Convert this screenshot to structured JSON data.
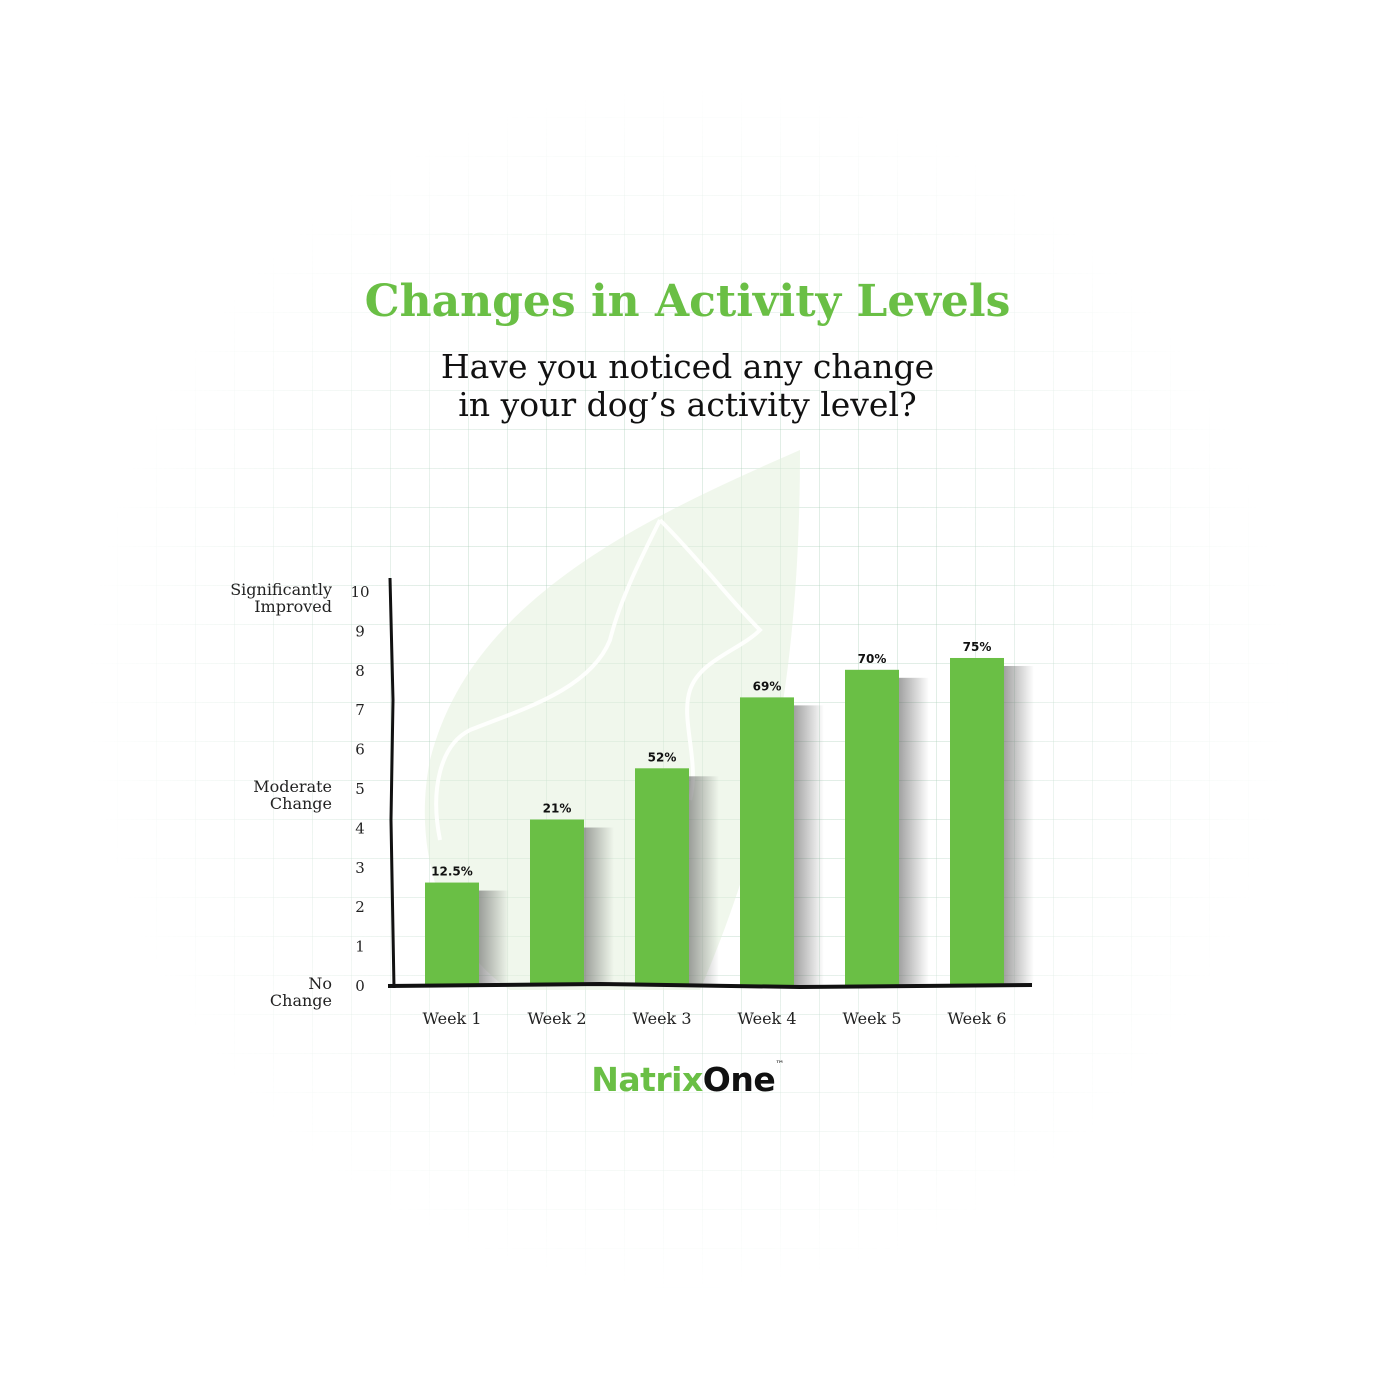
{
  "chart_data": {
    "type": "bar",
    "title": "Changes in Activity Levels",
    "subtitle_lines": [
      "Have you noticed any change",
      "in your dog’s activity level?"
    ],
    "categories": [
      "Week 1",
      "Week 2",
      "Week 3",
      "Week 4",
      "Week 5",
      "Week 6"
    ],
    "values": [
      2.6,
      4.2,
      5.5,
      7.3,
      8.0,
      8.3
    ],
    "data_labels": [
      "12.5%",
      "21%",
      "52%",
      "69%",
      "70%",
      "75%"
    ],
    "yticks": [
      0,
      1,
      2,
      3,
      4,
      5,
      6,
      7,
      8,
      9,
      10
    ],
    "ylim": [
      0,
      10
    ],
    "y_annotations": [
      {
        "value": 10,
        "lines": [
          "Significantly",
          "Improved"
        ]
      },
      {
        "value": 5,
        "lines": [
          "Moderate",
          "Change"
        ]
      },
      {
        "value": 0,
        "lines": [
          "No",
          "Change"
        ]
      }
    ],
    "grid": false,
    "bar_color": "#6abf45"
  },
  "logo": {
    "part1": "Natrix",
    "part2": "One",
    "tm": "™"
  },
  "colors": {
    "accent": "#6abf45",
    "text": "#111111"
  }
}
